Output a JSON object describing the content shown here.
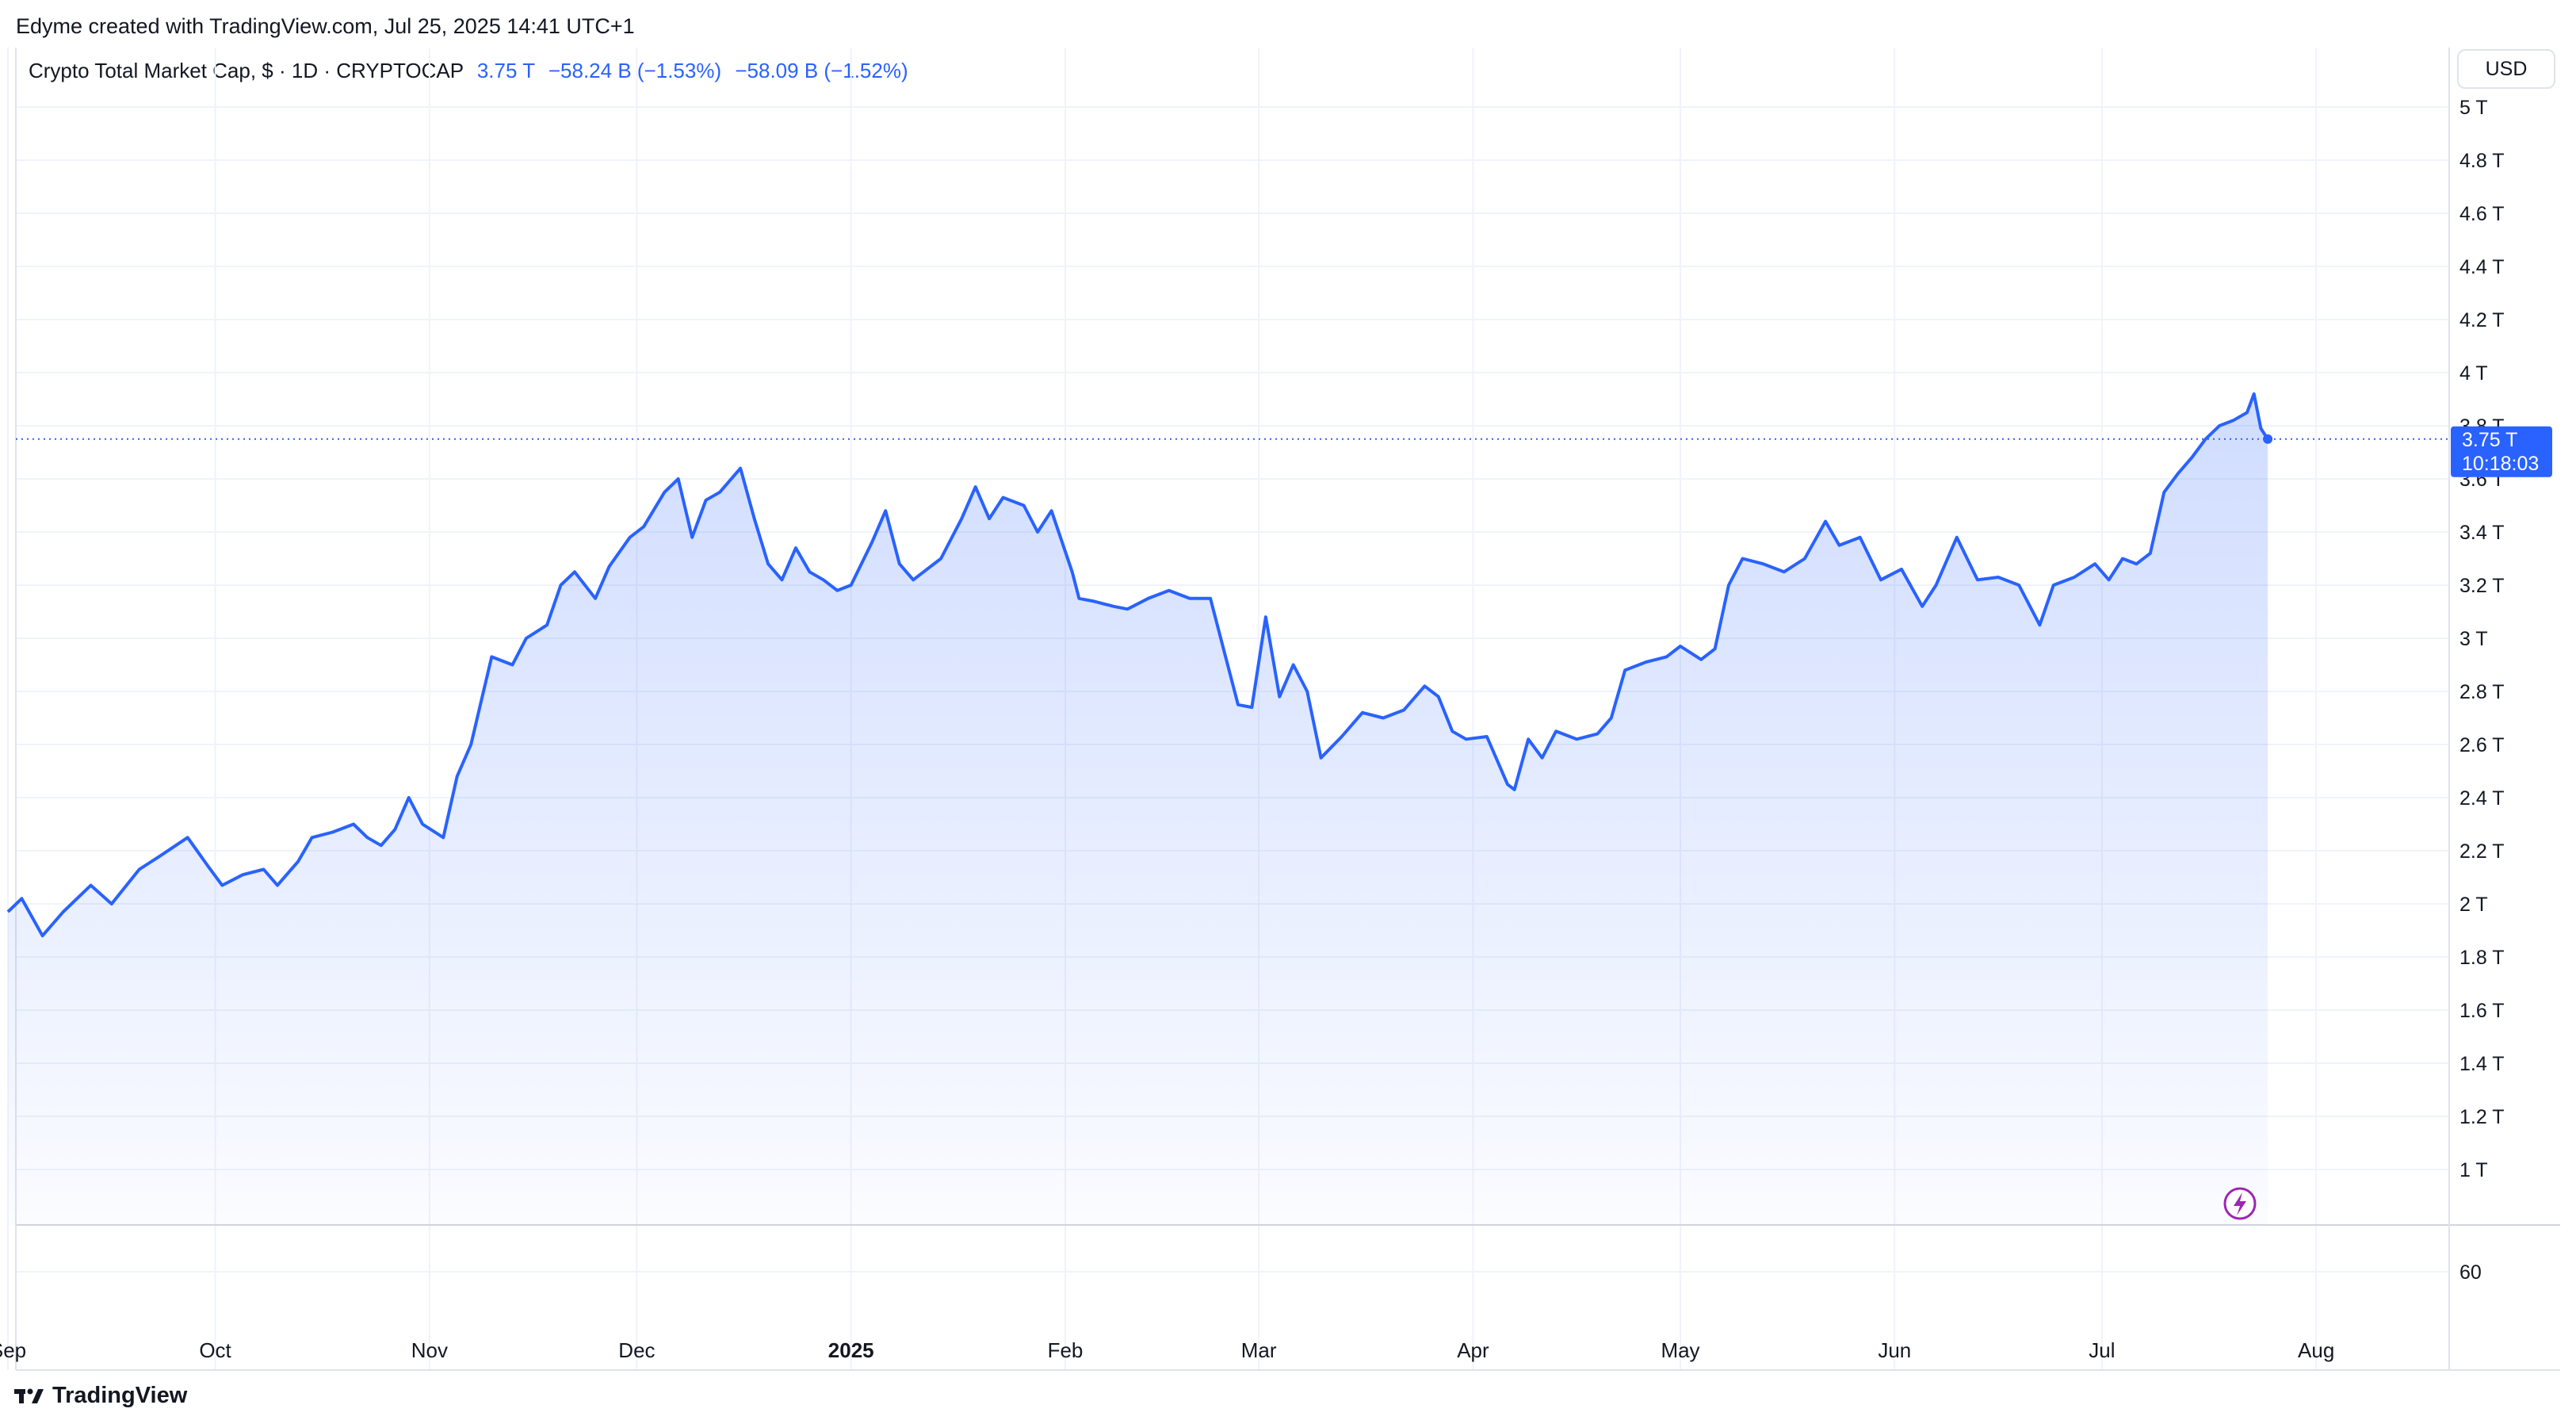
{
  "header": {
    "credit": "Edyme created with TradingView.com, Jul 25, 2025 14:41 UTC+1"
  },
  "legend": {
    "symbol": "Crypto Total Market Cap, $ · 1D · CRYPTOCAP",
    "last": "3.75 T",
    "change": "−58.24 B (−1.53%)",
    "change_alt": "−58.09 B (−1.52%)"
  },
  "axis": {
    "currency": "USD"
  },
  "last_price": {
    "value_label": "3.75 T",
    "countdown": "10:18:03"
  },
  "volume_pane": {
    "tick_label": "60"
  },
  "footer": {
    "brand": "TradingView"
  },
  "colors": {
    "line": "#2962ff",
    "fill": "#2962ff",
    "grid": "#f0f3fa",
    "label_bg": "#2962ff",
    "flash": "#9c27b0"
  },
  "icons": {
    "flash": "flash-icon",
    "logo": "tradingview-logo-icon"
  },
  "chart_data": {
    "type": "area",
    "title": "Crypto Total Market Cap, $ · 1D · CRYPTOCAP",
    "ylabel": "",
    "xlabel": "",
    "unit": "USD (trillions)",
    "ylim": [
      0.8,
      5.1
    ],
    "y_ticks": [
      1,
      1.2,
      1.4,
      1.6,
      1.8,
      2,
      2.2,
      2.4,
      2.6,
      2.8,
      3,
      3.2,
      3.4,
      3.6,
      3.8,
      4,
      4.2,
      4.4,
      4.6,
      4.8,
      5
    ],
    "y_tick_labels": [
      "1 T",
      "1.2 T",
      "1.4 T",
      "1.6 T",
      "1.8 T",
      "2 T",
      "2.2 T",
      "2.4 T",
      "2.6 T",
      "2.8 T",
      "3 T",
      "3.2 T",
      "3.4 T",
      "3.6 T",
      "3.8 T",
      "4 T",
      "4.2 T",
      "4.4 T",
      "4.6 T",
      "4.8 T",
      "5 T"
    ],
    "xlim": [
      "2024-09-01",
      "2025-08-30"
    ],
    "x_ticks": [
      {
        "date": "2024-09-01",
        "label": "Sep",
        "bold": false
      },
      {
        "date": "2024-10-01",
        "label": "Oct",
        "bold": false
      },
      {
        "date": "2024-11-01",
        "label": "Nov",
        "bold": false
      },
      {
        "date": "2024-12-01",
        "label": "Dec",
        "bold": false
      },
      {
        "date": "2025-01-01",
        "label": "2025",
        "bold": true
      },
      {
        "date": "2025-02-01",
        "label": "Feb",
        "bold": false
      },
      {
        "date": "2025-03-01",
        "label": "Mar",
        "bold": false
      },
      {
        "date": "2025-04-01",
        "label": "Apr",
        "bold": false
      },
      {
        "date": "2025-05-01",
        "label": "May",
        "bold": false
      },
      {
        "date": "2025-06-01",
        "label": "Jun",
        "bold": false
      },
      {
        "date": "2025-07-01",
        "label": "Jul",
        "bold": false
      },
      {
        "date": "2025-08-01",
        "label": "Aug",
        "bold": false
      }
    ],
    "last_value": 3.75,
    "grid": true,
    "series": [
      {
        "points": [
          [
            "2024-09-01",
            1.97
          ],
          [
            "2024-09-03",
            2.02
          ],
          [
            "2024-09-06",
            1.88
          ],
          [
            "2024-09-09",
            1.97
          ],
          [
            "2024-09-13",
            2.07
          ],
          [
            "2024-09-16",
            2.0
          ],
          [
            "2024-09-20",
            2.13
          ],
          [
            "2024-09-23",
            2.18
          ],
          [
            "2024-09-27",
            2.25
          ],
          [
            "2024-09-30",
            2.14
          ],
          [
            "2024-10-02",
            2.07
          ],
          [
            "2024-10-05",
            2.11
          ],
          [
            "2024-10-08",
            2.13
          ],
          [
            "2024-10-10",
            2.07
          ],
          [
            "2024-10-13",
            2.16
          ],
          [
            "2024-10-15",
            2.25
          ],
          [
            "2024-10-18",
            2.27
          ],
          [
            "2024-10-21",
            2.3
          ],
          [
            "2024-10-23",
            2.25
          ],
          [
            "2024-10-25",
            2.22
          ],
          [
            "2024-10-27",
            2.28
          ],
          [
            "2024-10-29",
            2.4
          ],
          [
            "2024-10-31",
            2.3
          ],
          [
            "2024-11-03",
            2.25
          ],
          [
            "2024-11-05",
            2.48
          ],
          [
            "2024-11-07",
            2.6
          ],
          [
            "2024-11-10",
            2.93
          ],
          [
            "2024-11-13",
            2.9
          ],
          [
            "2024-11-15",
            3.0
          ],
          [
            "2024-11-18",
            3.05
          ],
          [
            "2024-11-20",
            3.2
          ],
          [
            "2024-11-22",
            3.25
          ],
          [
            "2024-11-25",
            3.15
          ],
          [
            "2024-11-27",
            3.27
          ],
          [
            "2024-11-30",
            3.38
          ],
          [
            "2024-12-02",
            3.42
          ],
          [
            "2024-12-05",
            3.55
          ],
          [
            "2024-12-07",
            3.6
          ],
          [
            "2024-12-09",
            3.38
          ],
          [
            "2024-12-11",
            3.52
          ],
          [
            "2024-12-13",
            3.55
          ],
          [
            "2024-12-16",
            3.64
          ],
          [
            "2024-12-18",
            3.45
          ],
          [
            "2024-12-20",
            3.28
          ],
          [
            "2024-12-22",
            3.22
          ],
          [
            "2024-12-24",
            3.34
          ],
          [
            "2024-12-26",
            3.25
          ],
          [
            "2024-12-28",
            3.22
          ],
          [
            "2024-12-30",
            3.18
          ],
          [
            "2025-01-01",
            3.2
          ],
          [
            "2025-01-04",
            3.36
          ],
          [
            "2025-01-06",
            3.48
          ],
          [
            "2025-01-08",
            3.28
          ],
          [
            "2025-01-10",
            3.22
          ],
          [
            "2025-01-12",
            3.26
          ],
          [
            "2025-01-14",
            3.3
          ],
          [
            "2025-01-17",
            3.45
          ],
          [
            "2025-01-19",
            3.57
          ],
          [
            "2025-01-21",
            3.45
          ],
          [
            "2025-01-23",
            3.53
          ],
          [
            "2025-01-26",
            3.5
          ],
          [
            "2025-01-28",
            3.4
          ],
          [
            "2025-01-30",
            3.48
          ],
          [
            "2025-02-02",
            3.25
          ],
          [
            "2025-02-03",
            3.15
          ],
          [
            "2025-02-05",
            3.14
          ],
          [
            "2025-02-08",
            3.12
          ],
          [
            "2025-02-10",
            3.11
          ],
          [
            "2025-02-13",
            3.15
          ],
          [
            "2025-02-16",
            3.18
          ],
          [
            "2025-02-19",
            3.15
          ],
          [
            "2025-02-22",
            3.15
          ],
          [
            "2025-02-24",
            2.95
          ],
          [
            "2025-02-26",
            2.75
          ],
          [
            "2025-02-28",
            2.74
          ],
          [
            "2025-03-02",
            3.08
          ],
          [
            "2025-03-04",
            2.78
          ],
          [
            "2025-03-06",
            2.9
          ],
          [
            "2025-03-08",
            2.8
          ],
          [
            "2025-03-10",
            2.55
          ],
          [
            "2025-03-13",
            2.63
          ],
          [
            "2025-03-16",
            2.72
          ],
          [
            "2025-03-19",
            2.7
          ],
          [
            "2025-03-22",
            2.73
          ],
          [
            "2025-03-25",
            2.82
          ],
          [
            "2025-03-27",
            2.78
          ],
          [
            "2025-03-29",
            2.65
          ],
          [
            "2025-03-31",
            2.62
          ],
          [
            "2025-04-03",
            2.63
          ],
          [
            "2025-04-06",
            2.45
          ],
          [
            "2025-04-07",
            2.43
          ],
          [
            "2025-04-09",
            2.62
          ],
          [
            "2025-04-11",
            2.55
          ],
          [
            "2025-04-13",
            2.65
          ],
          [
            "2025-04-16",
            2.62
          ],
          [
            "2025-04-19",
            2.64
          ],
          [
            "2025-04-21",
            2.7
          ],
          [
            "2025-04-23",
            2.88
          ],
          [
            "2025-04-26",
            2.91
          ],
          [
            "2025-04-29",
            2.93
          ],
          [
            "2025-05-01",
            2.97
          ],
          [
            "2025-05-04",
            2.92
          ],
          [
            "2025-05-06",
            2.96
          ],
          [
            "2025-05-08",
            3.2
          ],
          [
            "2025-05-10",
            3.3
          ],
          [
            "2025-05-13",
            3.28
          ],
          [
            "2025-05-16",
            3.25
          ],
          [
            "2025-05-19",
            3.3
          ],
          [
            "2025-05-22",
            3.44
          ],
          [
            "2025-05-24",
            3.35
          ],
          [
            "2025-05-27",
            3.38
          ],
          [
            "2025-05-30",
            3.22
          ],
          [
            "2025-06-02",
            3.26
          ],
          [
            "2025-06-05",
            3.12
          ],
          [
            "2025-06-07",
            3.2
          ],
          [
            "2025-06-10",
            3.38
          ],
          [
            "2025-06-13",
            3.22
          ],
          [
            "2025-06-16",
            3.23
          ],
          [
            "2025-06-19",
            3.2
          ],
          [
            "2025-06-22",
            3.05
          ],
          [
            "2025-06-24",
            3.2
          ],
          [
            "2025-06-27",
            3.23
          ],
          [
            "2025-06-30",
            3.28
          ],
          [
            "2025-07-02",
            3.22
          ],
          [
            "2025-07-04",
            3.3
          ],
          [
            "2025-07-06",
            3.28
          ],
          [
            "2025-07-08",
            3.32
          ],
          [
            "2025-07-10",
            3.55
          ],
          [
            "2025-07-12",
            3.62
          ],
          [
            "2025-07-14",
            3.68
          ],
          [
            "2025-07-16",
            3.75
          ],
          [
            "2025-07-18",
            3.8
          ],
          [
            "2025-07-20",
            3.82
          ],
          [
            "2025-07-22",
            3.85
          ],
          [
            "2025-07-23",
            3.92
          ],
          [
            "2025-07-24",
            3.79
          ],
          [
            "2025-07-25",
            3.75
          ]
        ]
      }
    ]
  }
}
